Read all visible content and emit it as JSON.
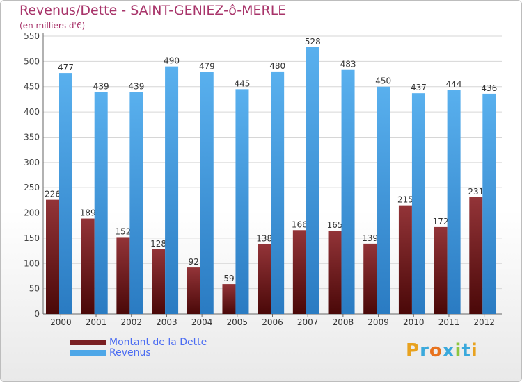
{
  "header": {
    "title": "Revenus/Dette - SAINT-GENIEZ-ô-MERLE",
    "subtitle": "(en milliers d'€)"
  },
  "legend": {
    "dette_label": "Montant de la Dette",
    "revenus_label": "Revenus"
  },
  "logo": {
    "text": "Proxiti"
  },
  "colors": {
    "dette": "#7a1f22",
    "revenus": "#4ea7e8",
    "title": "#a8346a",
    "legend_text": "#4b6cf2"
  },
  "chart_data": {
    "type": "bar",
    "title": "Revenus/Dette - SAINT-GENIEZ-ô-MERLE",
    "ylabel": "(en milliers d'€)",
    "xlabel": "",
    "ylim": [
      0,
      550
    ],
    "yticks": [
      0,
      50,
      100,
      150,
      200,
      250,
      300,
      350,
      400,
      450,
      500,
      550
    ],
    "grid": true,
    "legend": "bottom-left",
    "categories": [
      "2000",
      "2001",
      "2002",
      "2003",
      "2004",
      "2005",
      "2006",
      "2007",
      "2008",
      "2009",
      "2010",
      "2011",
      "2012"
    ],
    "series": [
      {
        "name": "Montant de la Dette",
        "values": [
          226,
          189,
          152,
          128,
          92,
          59,
          138,
          166,
          165,
          139,
          215,
          172,
          231
        ]
      },
      {
        "name": "Revenus",
        "values": [
          477,
          439,
          439,
          490,
          479,
          445,
          480,
          528,
          483,
          450,
          437,
          444,
          436
        ]
      }
    ]
  }
}
